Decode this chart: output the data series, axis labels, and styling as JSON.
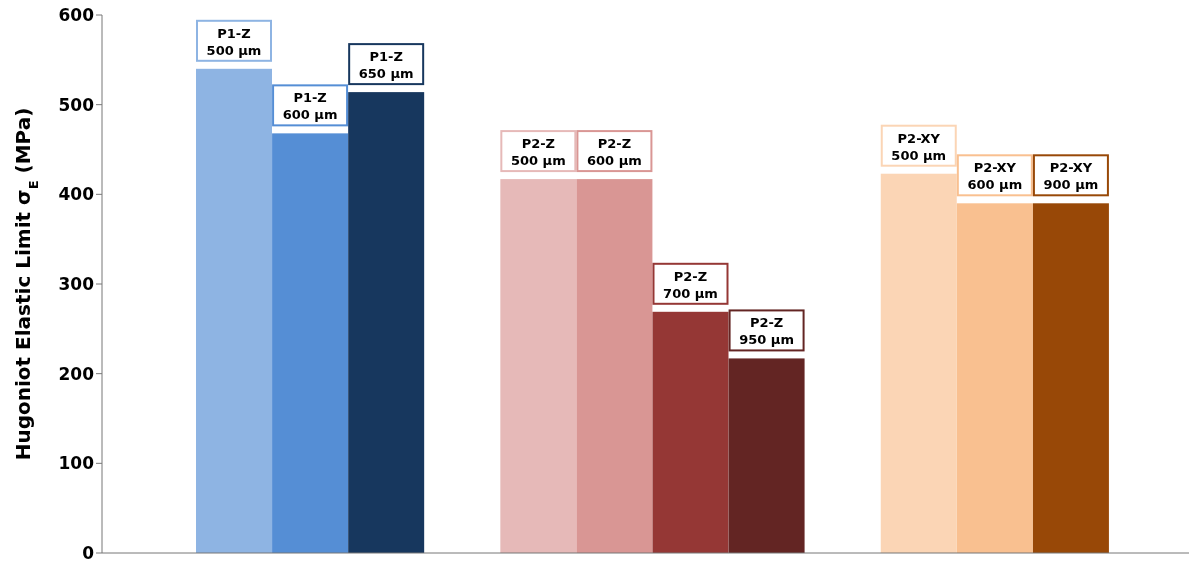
{
  "chart_data": {
    "type": "bar",
    "ylabel": "Hugoniot Elastic Limit σ$_{E}$ (MPa)",
    "categories": [
      "P1-Z 500 µm",
      "P1-Z 600 µm",
      "P1-Z 650 µm",
      null,
      "P2-Z 500 µm",
      "P2-Z 600 µm",
      "P2-Z 700 µm",
      "P2-Z 950 µm",
      null,
      "P2-XY 500 µm",
      "P2-XY 600 µm",
      "P2-XY 900 µm"
    ],
    "values": [
      540,
      468,
      514,
      null,
      417,
      417,
      269,
      217,
      null,
      423,
      390,
      390
    ],
    "colors": [
      "#8eb4e3",
      "#558ed5",
      "#17375e",
      null,
      "#e6b9b8",
      "#d99694",
      "#953735",
      "#632523",
      null,
      "#fbd5b5",
      "#f9c090",
      "#984807"
    ],
    "ylim": [
      0,
      600
    ],
    "yticks": [
      0,
      100,
      200,
      300,
      400,
      500,
      600
    ],
    "grid": false,
    "legend": false
  }
}
